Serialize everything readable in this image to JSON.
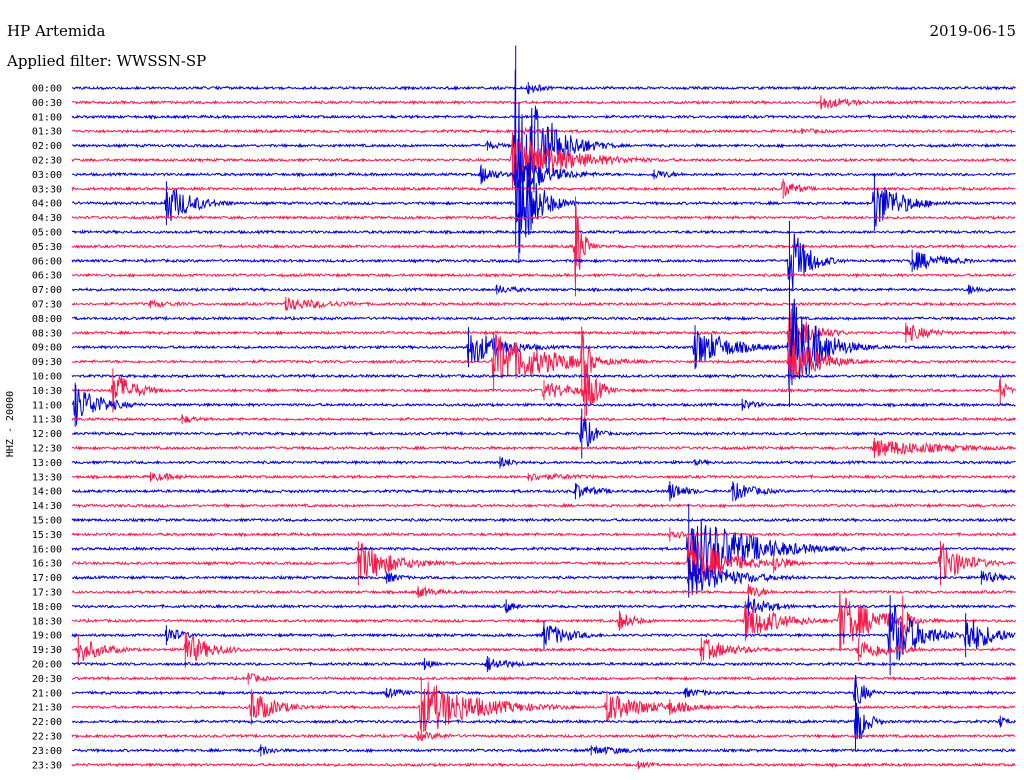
{
  "header": {
    "station": "HP Artemida",
    "filter": "Applied filter: WWSSN-SP",
    "date": "2019-06-15"
  },
  "side_label": "HHZ - 20000",
  "colors": {
    "trace_a": "#0000dd",
    "trace_b": "#ff1a4a",
    "background": "#ffffff",
    "text": "#000000"
  },
  "chart_data": {
    "type": "line",
    "title": "HP Artemida",
    "subtitle": "Applied filter: WWSSN-SP",
    "date": "2019-06-15",
    "channel": "HHZ - 20000",
    "row_labels": [
      "00:00",
      "00:30",
      "01:00",
      "01:30",
      "02:00",
      "02:30",
      "03:00",
      "03:30",
      "04:00",
      "04:30",
      "05:00",
      "05:30",
      "06:00",
      "06:30",
      "07:00",
      "07:30",
      "08:00",
      "08:30",
      "09:00",
      "09:30",
      "10:00",
      "10:30",
      "11:00",
      "11:30",
      "12:00",
      "12:30",
      "13:00",
      "13:30",
      "14:00",
      "14:30",
      "15:00",
      "15:30",
      "16:00",
      "16:30",
      "17:00",
      "17:30",
      "18:00",
      "18:30",
      "19:00",
      "19:30",
      "20:00",
      "20:30",
      "21:00",
      "21:30",
      "22:00",
      "22:30",
      "23:00",
      "23:30"
    ],
    "row_minutes": 30,
    "color_cycle": [
      "#0000dd",
      "#ff1a4a"
    ],
    "events": [
      {
        "row": 0,
        "minute": 14.5,
        "amp": 6,
        "dur": 1.0
      },
      {
        "row": 1,
        "minute": 23.8,
        "amp": 7,
        "dur": 2.0
      },
      {
        "row": 3,
        "minute": 14.3,
        "amp": 3,
        "dur": 2.5
      },
      {
        "row": 3,
        "minute": 23.2,
        "amp": 3,
        "dur": 2.0
      },
      {
        "row": 4,
        "minute": 13.2,
        "amp": 5,
        "dur": 1.0
      },
      {
        "row": 4,
        "minute": 14.1,
        "amp": 100,
        "dur": 1.5
      },
      {
        "row": 5,
        "minute": 14.0,
        "amp": 28,
        "dur": 3.0
      },
      {
        "row": 6,
        "minute": 13.0,
        "amp": 10,
        "dur": 1.0
      },
      {
        "row": 6,
        "minute": 14.1,
        "amp": 20,
        "dur": 2.0
      },
      {
        "row": 6,
        "minute": 18.5,
        "amp": 5,
        "dur": 1.5
      },
      {
        "row": 7,
        "minute": 22.6,
        "amp": 10,
        "dur": 1.0
      },
      {
        "row": 8,
        "minute": 3.0,
        "amp": 22,
        "dur": 1.5
      },
      {
        "row": 8,
        "minute": 25.5,
        "amp": 28,
        "dur": 1.5
      },
      {
        "row": 8,
        "minute": 14.2,
        "amp": 60,
        "dur": 1.0
      },
      {
        "row": 11,
        "minute": 16.0,
        "amp": 50,
        "dur": 0.4
      },
      {
        "row": 12,
        "minute": 26.7,
        "amp": 11,
        "dur": 2.0
      },
      {
        "row": 12,
        "minute": 22.8,
        "amp": 40,
        "dur": 1.0
      },
      {
        "row": 14,
        "minute": 13.5,
        "amp": 5,
        "dur": 1.5
      },
      {
        "row": 14,
        "minute": 28.5,
        "amp": 5,
        "dur": 1.2
      },
      {
        "row": 15,
        "minute": 6.8,
        "amp": 7,
        "dur": 3.0
      },
      {
        "row": 15,
        "minute": 2.5,
        "amp": 4,
        "dur": 2.0
      },
      {
        "row": 17,
        "minute": 26.5,
        "amp": 10,
        "dur": 1.5
      },
      {
        "row": 17,
        "minute": 22.8,
        "amp": 30,
        "dur": 1.2
      },
      {
        "row": 18,
        "minute": 12.6,
        "amp": 20,
        "dur": 2.0
      },
      {
        "row": 18,
        "minute": 19.8,
        "amp": 22,
        "dur": 2.0
      },
      {
        "row": 18,
        "minute": 22.8,
        "amp": 60,
        "dur": 1.5
      },
      {
        "row": 19,
        "minute": 13.4,
        "amp": 30,
        "dur": 3.0
      },
      {
        "row": 19,
        "minute": 16.2,
        "amp": 35,
        "dur": 0.5
      },
      {
        "row": 19,
        "minute": 22.8,
        "amp": 30,
        "dur": 1.5
      },
      {
        "row": 21,
        "minute": 1.3,
        "amp": 22,
        "dur": 1.2
      },
      {
        "row": 21,
        "minute": 15.0,
        "amp": 10,
        "dur": 2.0
      },
      {
        "row": 21,
        "minute": 16.3,
        "amp": 30,
        "dur": 0.7
      },
      {
        "row": 21,
        "minute": 29.5,
        "amp": 14,
        "dur": 0.4
      },
      {
        "row": 22,
        "minute": 0.1,
        "amp": 22,
        "dur": 1.5
      },
      {
        "row": 22,
        "minute": 21.3,
        "amp": 6,
        "dur": 1.0
      },
      {
        "row": 23,
        "minute": 3.5,
        "amp": 5,
        "dur": 1.0
      },
      {
        "row": 24,
        "minute": 16.2,
        "amp": 25,
        "dur": 0.6
      },
      {
        "row": 25,
        "minute": 25.5,
        "amp": 10,
        "dur": 4.0
      },
      {
        "row": 26,
        "minute": 13.6,
        "amp": 6,
        "dur": 1.0
      },
      {
        "row": 26,
        "minute": 19.8,
        "amp": 3,
        "dur": 1.5
      },
      {
        "row": 27,
        "minute": 2.5,
        "amp": 5,
        "dur": 2.0
      },
      {
        "row": 27,
        "minute": 14.5,
        "amp": 4,
        "dur": 4.0
      },
      {
        "row": 28,
        "minute": 16.0,
        "amp": 8,
        "dur": 1.5
      },
      {
        "row": 28,
        "minute": 19.0,
        "amp": 10,
        "dur": 1.0
      },
      {
        "row": 28,
        "minute": 21.0,
        "amp": 10,
        "dur": 1.5
      },
      {
        "row": 31,
        "minute": 19.0,
        "amp": 7,
        "dur": 1.0
      },
      {
        "row": 32,
        "minute": 19.6,
        "amp": 45,
        "dur": 3.0
      },
      {
        "row": 33,
        "minute": 9.1,
        "amp": 22,
        "dur": 2.0
      },
      {
        "row": 33,
        "minute": 19.6,
        "amp": 30,
        "dur": 2.0
      },
      {
        "row": 33,
        "minute": 22.3,
        "amp": 10,
        "dur": 1.0
      },
      {
        "row": 33,
        "minute": 27.6,
        "amp": 22,
        "dur": 1.5
      },
      {
        "row": 34,
        "minute": 10.0,
        "amp": 6,
        "dur": 1.0
      },
      {
        "row": 34,
        "minute": 19.6,
        "amp": 20,
        "dur": 2.5
      },
      {
        "row": 34,
        "minute": 28.9,
        "amp": 7,
        "dur": 1.5
      },
      {
        "row": 35,
        "minute": 11.0,
        "amp": 6,
        "dur": 1.5
      },
      {
        "row": 35,
        "minute": 21.5,
        "amp": 8,
        "dur": 1.0
      },
      {
        "row": 36,
        "minute": 21.5,
        "amp": 10,
        "dur": 1.5
      },
      {
        "row": 36,
        "minute": 13.8,
        "amp": 7,
        "dur": 0.6
      },
      {
        "row": 37,
        "minute": 21.4,
        "amp": 20,
        "dur": 2.0
      },
      {
        "row": 37,
        "minute": 24.4,
        "amp": 30,
        "dur": 2.0
      },
      {
        "row": 37,
        "minute": 17.4,
        "amp": 10,
        "dur": 1.0
      },
      {
        "row": 37,
        "minute": 26.4,
        "amp": 25,
        "dur": 0.4
      },
      {
        "row": 38,
        "minute": 15.0,
        "amp": 14,
        "dur": 1.5
      },
      {
        "row": 38,
        "minute": 26.0,
        "amp": 40,
        "dur": 1.5
      },
      {
        "row": 38,
        "minute": 28.4,
        "amp": 22,
        "dur": 1.5
      },
      {
        "row": 38,
        "minute": 3.0,
        "amp": 10,
        "dur": 1.0
      },
      {
        "row": 39,
        "minute": 0.2,
        "amp": 14,
        "dur": 1.5
      },
      {
        "row": 39,
        "minute": 3.6,
        "amp": 18,
        "dur": 1.5
      },
      {
        "row": 39,
        "minute": 20.0,
        "amp": 12,
        "dur": 2.0
      },
      {
        "row": 39,
        "minute": 25.0,
        "amp": 12,
        "dur": 2.0
      },
      {
        "row": 40,
        "minute": 13.2,
        "amp": 8,
        "dur": 1.5
      },
      {
        "row": 40,
        "minute": 11.2,
        "amp": 6,
        "dur": 0.6
      },
      {
        "row": 41,
        "minute": 5.6,
        "amp": 6,
        "dur": 1.0
      },
      {
        "row": 42,
        "minute": 24.9,
        "amp": 18,
        "dur": 0.6
      },
      {
        "row": 42,
        "minute": 19.5,
        "amp": 5,
        "dur": 1.5
      },
      {
        "row": 42,
        "minute": 10.0,
        "amp": 5,
        "dur": 1.5
      },
      {
        "row": 43,
        "minute": 5.7,
        "amp": 18,
        "dur": 1.5
      },
      {
        "row": 43,
        "minute": 11.1,
        "amp": 30,
        "dur": 3.0
      },
      {
        "row": 43,
        "minute": 17.0,
        "amp": 15,
        "dur": 2.5
      },
      {
        "row": 43,
        "minute": 19.0,
        "amp": 8,
        "dur": 1.5
      },
      {
        "row": 44,
        "minute": 24.9,
        "amp": 30,
        "dur": 0.6
      },
      {
        "row": 44,
        "minute": 29.5,
        "amp": 6,
        "dur": 0.5
      },
      {
        "row": 45,
        "minute": 11.0,
        "amp": 5,
        "dur": 2.0
      },
      {
        "row": 46,
        "minute": 6.0,
        "amp": 6,
        "dur": 1.0
      },
      {
        "row": 46,
        "minute": 16.5,
        "amp": 5,
        "dur": 3.0
      },
      {
        "row": 47,
        "minute": 18.0,
        "amp": 4,
        "dur": 1.0
      }
    ]
  }
}
